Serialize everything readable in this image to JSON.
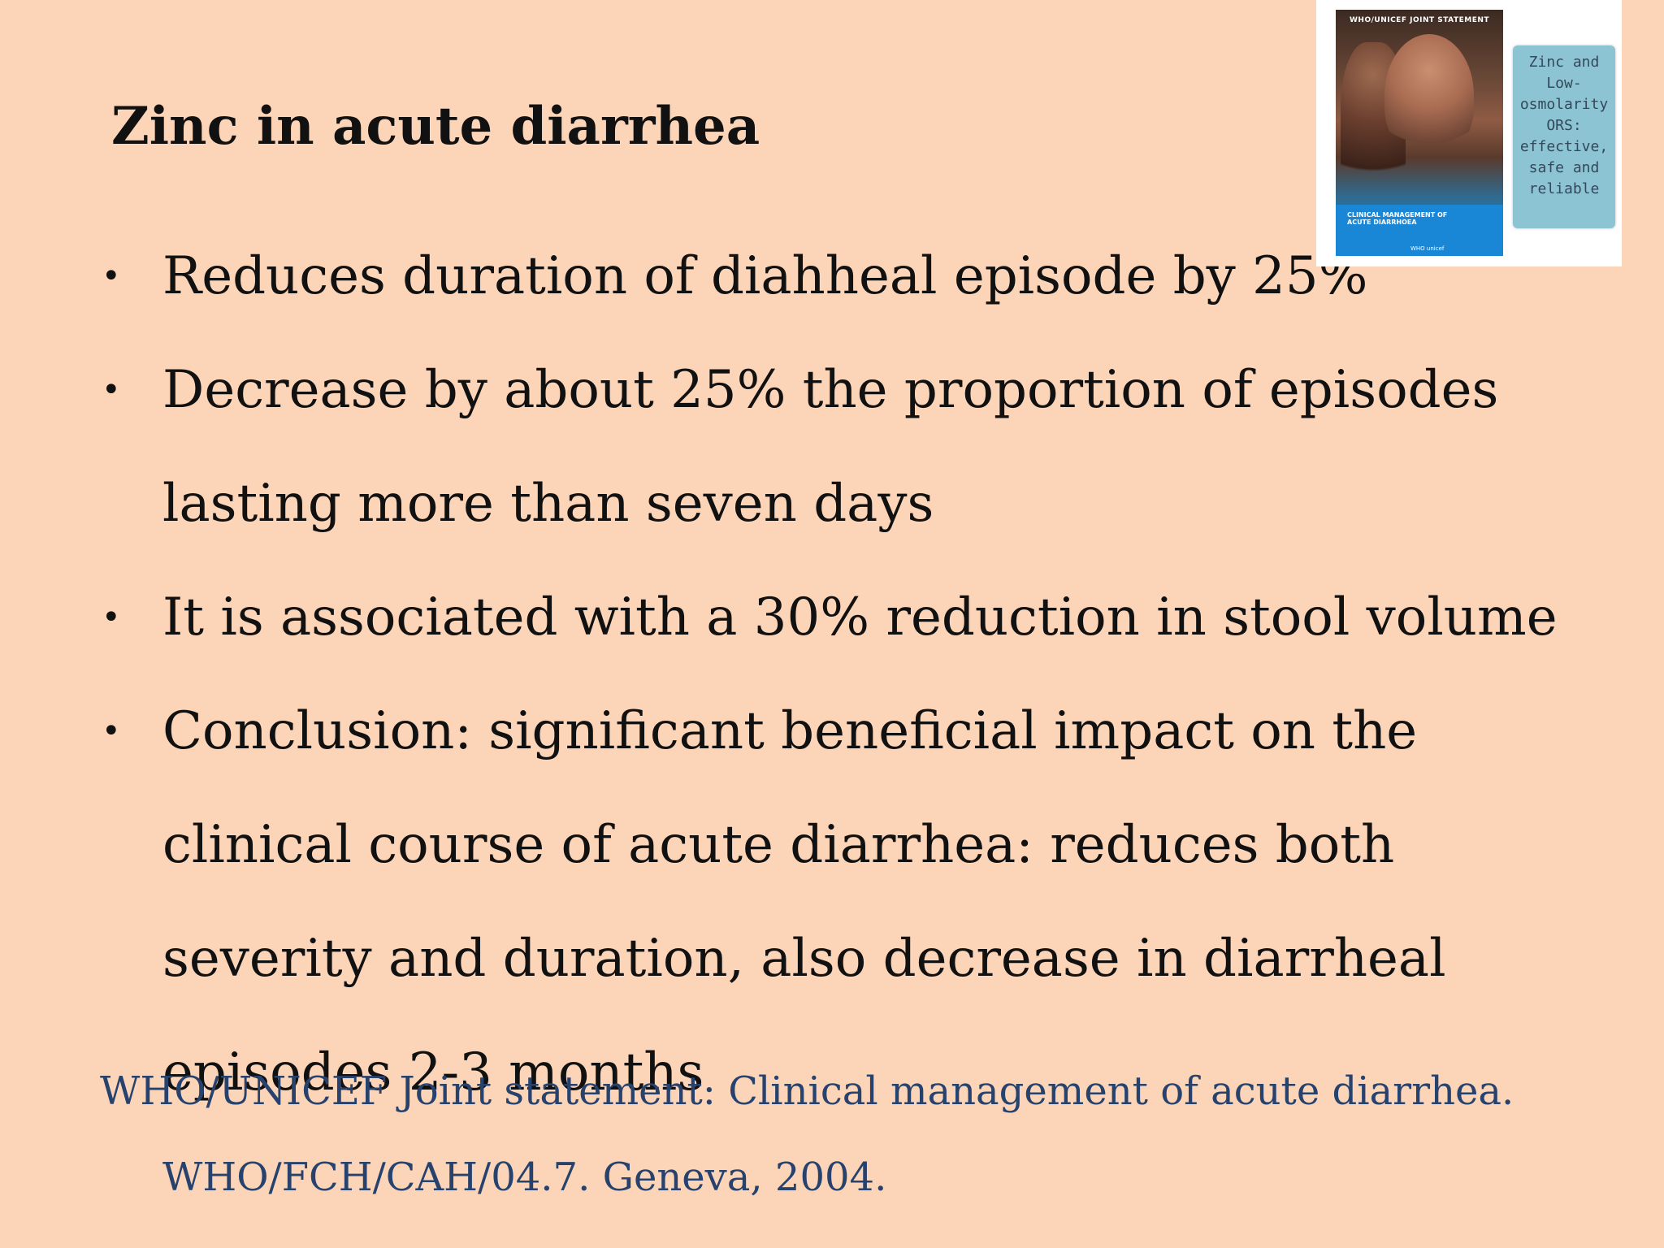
{
  "slide": {
    "title": "Zinc in acute diarrhea",
    "bullets": [
      "Reduces  duration of diahheal episode by 25%",
      " Decrease by about 25% the proportion of episodes lasting more than seven days",
      " It is associated with a 30% reduction in stool volume",
      "Conclusion: significant beneficial impact on the clinical course of acute diarrhea: reduces both severity and duration, also decrease in diarrheal episodes 2-3 months"
    ],
    "bullet_symbol": "•",
    "reference_line1": "WHO/UNICEF Joint statement: Clinical management of acute diarrhea.",
    "reference_line2": "WHO/FCH/CAH/04.7. Geneva, 2004."
  },
  "cover": {
    "header": "WHO/UNICEF JOINT STATEMENT",
    "subtitle": "CLINICAL MANAGEMENT OF ACUTE DIARRHOEA",
    "logos": "WHO   unicef",
    "note": "Zinc and\nLow-\nosmolarity\nORS:\neffective,\nsafe and\nreliable"
  },
  "colors": {
    "background": "#fcd5b8",
    "text": "#111111",
    "reference": "#28426e",
    "note_box": "#8dc4d4",
    "cover_band": "#1a86d6"
  }
}
